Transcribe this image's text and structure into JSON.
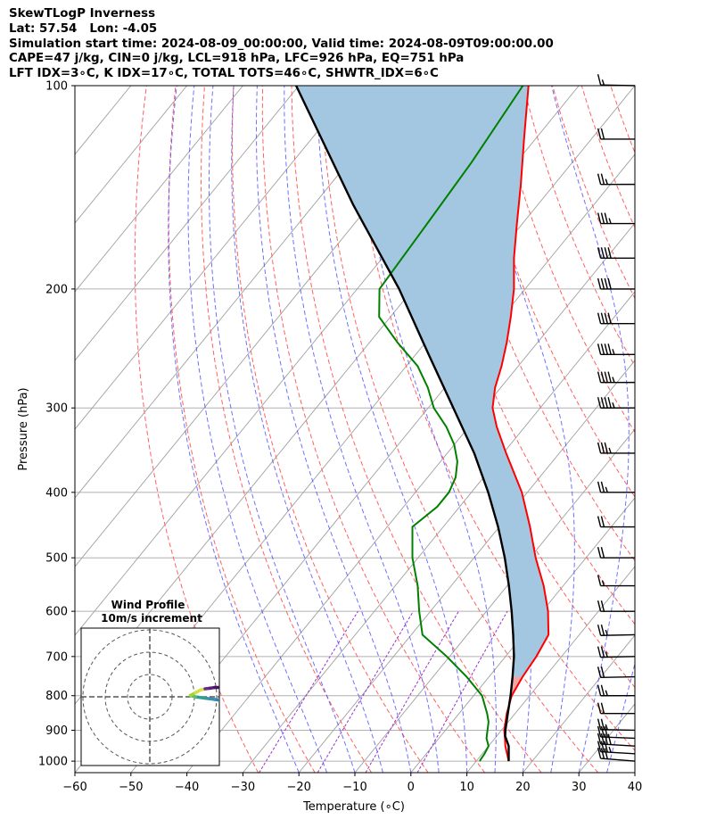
{
  "header": {
    "line1": "SkewTLogP Inverness",
    "line2": "Lat: 57.54   Lon: -4.05",
    "line3": "Simulation start time: 2024-08-09_00:00:00, Valid time: 2024-08-09T09:00:00.00",
    "line4": "CAPE=47 j/kg, CIN=0 j/kg, LCL=918 hPa, LFC=926 hPa, EQ=751 hPa",
    "line5": "LFT IDX=3∘C, K IDX=17∘C, TOTAL TOTS=46∘C, SHWTR_IDX=6∘C"
  },
  "chart_data": [
    {
      "type": "line",
      "subtype": "skew-t log-p",
      "xlabel": "Temperature (∘C)",
      "ylabel": "Pressure (hPa)",
      "xlim": [
        -60,
        40
      ],
      "ylim": [
        1040,
        100
      ],
      "y_scale": "log",
      "x_ticks": [
        "−60",
        "−50",
        "−40",
        "−30",
        "−20",
        "−10",
        "0",
        "10",
        "20",
        "30",
        "40"
      ],
      "y_ticks": [
        "100",
        "200",
        "300",
        "400",
        "500",
        "600",
        "700",
        "800",
        "900",
        "1000"
      ],
      "grid": true,
      "colors": {
        "temperature": "#ff0000",
        "dewpoint": "#008000",
        "parcel": "#000000",
        "cape_fill": "#a3c7e0",
        "cin_fill": "#f4a6a6",
        "dry_adiabats": "#ff6060",
        "moist_adiabats": "#4040ff",
        "mixing_ratio": "#9932cc",
        "isotherms": "#a0a0a0"
      },
      "series": [
        {
          "name": "temperature",
          "pressure": [
            1000,
            950,
            925,
            900,
            850,
            800,
            750,
            700,
            650,
            600,
            550,
            500,
            450,
            400,
            350,
            320,
            300,
            280,
            260,
            240,
            220,
            200,
            180,
            160,
            140,
            120,
            100
          ],
          "values": [
            15.8,
            13.0,
            11.8,
            10.5,
            8.5,
            6.8,
            6.0,
            5.5,
            4.5,
            1.0,
            -3.5,
            -9.0,
            -14.5,
            -21.0,
            -29.5,
            -35.0,
            -38.5,
            -41.0,
            -43.0,
            -45.5,
            -48.5,
            -52.0,
            -56.5,
            -61.0,
            -66.0,
            -72.0,
            -79.0
          ]
        },
        {
          "name": "dewpoint",
          "pressure": [
            1000,
            975,
            950,
            925,
            900,
            875,
            850,
            800,
            750,
            700,
            650,
            600,
            550,
            500,
            450,
            420,
            400,
            380,
            360,
            340,
            320,
            300,
            280,
            260,
            240,
            220,
            200,
            160,
            130,
            100
          ],
          "values": [
            10.6,
            10.4,
            10.0,
            8.5,
            7.5,
            6.5,
            5.0,
            1.5,
            -4.0,
            -10.5,
            -18.0,
            -22.0,
            -26.0,
            -31.0,
            -35.5,
            -34.0,
            -34.0,
            -35.0,
            -37.0,
            -40.0,
            -44.0,
            -49.0,
            -53.0,
            -58.0,
            -65.0,
            -72.0,
            -76.0,
            -77.0,
            -78.0,
            -80.0
          ]
        },
        {
          "name": "parcel",
          "pressure": [
            1000,
            950,
            918,
            900,
            850,
            800,
            750,
            700,
            650,
            600,
            550,
            500,
            450,
            400,
            350,
            300,
            250,
            200,
            150,
            100
          ],
          "values": [
            15.8,
            13.6,
            11.5,
            10.7,
            8.7,
            6.6,
            4.2,
            1.5,
            -1.8,
            -5.5,
            -9.7,
            -14.5,
            -20.2,
            -27.0,
            -35.2,
            -45.5,
            -57.7,
            -72.5,
            -93.0,
            -120.5
          ]
        }
      ],
      "wind_barbs": {
        "pressure": [
          1000,
          975,
          950,
          925,
          900,
          850,
          800,
          750,
          700,
          650,
          600,
          550,
          500,
          450,
          400,
          350,
          300,
          275,
          250,
          225,
          200,
          180,
          160,
          140,
          120,
          100
        ],
        "speed_kt": [
          30,
          35,
          40,
          30,
          25,
          20,
          25,
          20,
          25,
          25,
          20,
          15,
          20,
          20,
          25,
          35,
          45,
          45,
          45,
          40,
          40,
          40,
          35,
          25,
          20,
          15
        ],
        "direction_deg": [
          250,
          255,
          255,
          260,
          265,
          270,
          270,
          275,
          275,
          275,
          270,
          270,
          270,
          270,
          270,
          270,
          270,
          270,
          270,
          270,
          270,
          270,
          270,
          270,
          270,
          265
        ]
      }
    },
    {
      "type": "line",
      "subtype": "hodograph",
      "title": "Wind Profile",
      "subtitle": "10m/s increment",
      "rings": 3,
      "u_ms": [
        13.5,
        12,
        10,
        8,
        6,
        5,
        6,
        7,
        8,
        9,
        10,
        11,
        12.5,
        13.5,
        14.5,
        16
      ],
      "v_ms": [
        -2,
        -1.5,
        -1,
        -0.5,
        0,
        0.5,
        1.5,
        2.5,
        3,
        3.2,
        3.5,
        3.5,
        3.0,
        2.5,
        2.0,
        1.5
      ]
    }
  ]
}
